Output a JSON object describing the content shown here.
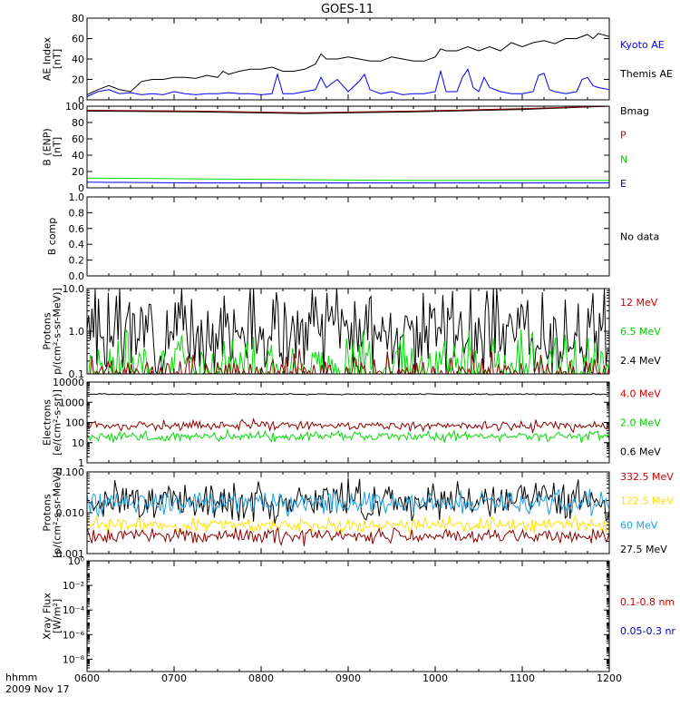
{
  "title": "GOES-11",
  "time_axis": {
    "tick_labels": [
      "0600",
      "0700",
      "0800",
      "0900",
      "1000",
      "1100",
      "1200"
    ],
    "unit_label": "hhmm",
    "date_label": "2009 Nov 17"
  },
  "chart_data": [
    {
      "id": "ae",
      "type": "line",
      "ylabel": [
        "AE Index",
        "[nT]"
      ],
      "yscale": "linear",
      "ylim": [
        0,
        80
      ],
      "yticks": [
        "0",
        "20",
        "40",
        "60",
        "80"
      ],
      "series": [
        {
          "name": "Kyoto AE",
          "color": "#0000ff",
          "points": [
            [
              0,
              3
            ],
            [
              10,
              8
            ],
            [
              20,
              10
            ],
            [
              30,
              6
            ],
            [
              40,
              7
            ],
            [
              50,
              5
            ],
            [
              60,
              6
            ],
            [
              70,
              5
            ],
            [
              80,
              8
            ],
            [
              90,
              6
            ],
            [
              100,
              5
            ],
            [
              110,
              6
            ],
            [
              120,
              6
            ],
            [
              130,
              7
            ],
            [
              140,
              6
            ],
            [
              150,
              6
            ],
            [
              160,
              5
            ],
            [
              170,
              6
            ],
            [
              175,
              25
            ],
            [
              180,
              6
            ],
            [
              190,
              6
            ],
            [
              200,
              8
            ],
            [
              210,
              10
            ],
            [
              215,
              22
            ],
            [
              220,
              12
            ],
            [
              230,
              20
            ],
            [
              240,
              8
            ],
            [
              250,
              18
            ],
            [
              255,
              25
            ],
            [
              260,
              10
            ],
            [
              270,
              6
            ],
            [
              280,
              8
            ],
            [
              290,
              5
            ],
            [
              300,
              6
            ],
            [
              310,
              6
            ],
            [
              320,
              8
            ],
            [
              325,
              28
            ],
            [
              330,
              8
            ],
            [
              340,
              8
            ],
            [
              345,
              22
            ],
            [
              350,
              30
            ],
            [
              355,
              12
            ],
            [
              360,
              8
            ],
            [
              365,
              22
            ],
            [
              370,
              12
            ],
            [
              380,
              8
            ],
            [
              390,
              6
            ],
            [
              400,
              6
            ],
            [
              410,
              8
            ],
            [
              415,
              24
            ],
            [
              420,
              26
            ],
            [
              425,
              10
            ],
            [
              430,
              8
            ],
            [
              440,
              6
            ],
            [
              450,
              8
            ],
            [
              455,
              20
            ],
            [
              460,
              22
            ],
            [
              465,
              14
            ],
            [
              470,
              12
            ],
            [
              480,
              10
            ]
          ]
        },
        {
          "name": "Themis AE",
          "color": "#000000",
          "points": [
            [
              0,
              5
            ],
            [
              10,
              10
            ],
            [
              20,
              14
            ],
            [
              30,
              10
            ],
            [
              40,
              8
            ],
            [
              50,
              18
            ],
            [
              60,
              20
            ],
            [
              70,
              20
            ],
            [
              80,
              22
            ],
            [
              90,
              22
            ],
            [
              100,
              21
            ],
            [
              110,
              24
            ],
            [
              120,
              22
            ],
            [
              125,
              28
            ],
            [
              130,
              25
            ],
            [
              140,
              28
            ],
            [
              150,
              30
            ],
            [
              160,
              30
            ],
            [
              170,
              32
            ],
            [
              180,
              28
            ],
            [
              190,
              28
            ],
            [
              200,
              30
            ],
            [
              210,
              35
            ],
            [
              215,
              45
            ],
            [
              220,
              40
            ],
            [
              230,
              40
            ],
            [
              240,
              42
            ],
            [
              250,
              40
            ],
            [
              260,
              38
            ],
            [
              270,
              38
            ],
            [
              280,
              42
            ],
            [
              290,
              40
            ],
            [
              300,
              38
            ],
            [
              310,
              38
            ],
            [
              320,
              42
            ],
            [
              325,
              50
            ],
            [
              330,
              48
            ],
            [
              340,
              48
            ],
            [
              350,
              52
            ],
            [
              360,
              48
            ],
            [
              370,
              52
            ],
            [
              380,
              48
            ],
            [
              390,
              56
            ],
            [
              400,
              52
            ],
            [
              410,
              56
            ],
            [
              420,
              58
            ],
            [
              430,
              55
            ],
            [
              440,
              60
            ],
            [
              450,
              60
            ],
            [
              460,
              64
            ],
            [
              465,
              60
            ],
            [
              470,
              65
            ],
            [
              480,
              62
            ]
          ]
        }
      ],
      "legend": [
        {
          "label": "Kyoto AE",
          "color": "#0000ff"
        },
        {
          "label": "Themis AE",
          "color": "#000000"
        }
      ]
    },
    {
      "id": "bfield",
      "type": "line",
      "ylabel": [
        "B (ENP)",
        "[nT]"
      ],
      "yscale": "linear",
      "ylim": [
        0,
        100
      ],
      "yticks": [
        "0",
        "20",
        "40",
        "60",
        "80",
        "100"
      ],
      "series": [
        {
          "name": "Bmag",
          "color": "#000000",
          "points": [
            [
              0,
              94
            ],
            [
              100,
              93
            ],
            [
              200,
              91
            ],
            [
              300,
              93
            ],
            [
              400,
              96
            ],
            [
              480,
              100
            ]
          ]
        },
        {
          "name": "P",
          "color": "#8b0000",
          "points": [
            [
              0,
              95
            ],
            [
              100,
              94
            ],
            [
              200,
              92
            ],
            [
              300,
              94
            ],
            [
              400,
              97
            ],
            [
              480,
              100
            ]
          ]
        },
        {
          "name": "N",
          "color": "#00dd00",
          "points": [
            [
              0,
              12
            ],
            [
              100,
              11
            ],
            [
              200,
              10
            ],
            [
              300,
              9
            ],
            [
              400,
              9
            ],
            [
              480,
              9
            ]
          ]
        },
        {
          "name": "E",
          "color": "#0000ff",
          "points": [
            [
              0,
              7
            ],
            [
              100,
              6
            ],
            [
              200,
              6
            ],
            [
              300,
              6
            ],
            [
              400,
              6
            ],
            [
              480,
              6
            ]
          ]
        }
      ],
      "legend": [
        {
          "label": "Bmag",
          "color": "#000000"
        },
        {
          "label": "P",
          "color": "#cc0000"
        },
        {
          "label": "N",
          "color": "#00cc00"
        },
        {
          "label": "E",
          "color": "#0000cc"
        }
      ]
    },
    {
      "id": "bcomp",
      "type": "line",
      "ylabel": [
        "B comp"
      ],
      "yscale": "linear",
      "ylim": [
        0,
        1
      ],
      "yticks": [
        "0.0",
        "0.2",
        "0.4",
        "0.6",
        "0.8",
        "1.0"
      ],
      "series": [],
      "legend": [
        {
          "label": "No data",
          "color": "#000000"
        }
      ]
    },
    {
      "id": "protons_low",
      "type": "line",
      "ylabel": [
        "Protons",
        "p/(cm²-s-sr-MeV)]"
      ],
      "yscale": "log",
      "ylim": [
        0.1,
        10
      ],
      "yticks": [
        "0.1",
        "1.0",
        "10.0"
      ],
      "series": [
        {
          "name": "2.4 MeV",
          "color": "#000000",
          "noise": {
            "center": 1.0,
            "spread": 1.0,
            "seed": 3
          }
        },
        {
          "name": "6.5 MeV",
          "color": "#00dd00",
          "noise": {
            "center": 0.14,
            "spread": 0.8,
            "seed": 7
          }
        },
        {
          "name": "12 MeV",
          "color": "#8b0000",
          "noise": {
            "center": 0.09,
            "spread": 0.5,
            "seed": 11
          }
        }
      ],
      "legend": [
        {
          "label": "12 MeV",
          "color": "#cc0000"
        },
        {
          "label": "6.5 MeV",
          "color": "#00cc00"
        },
        {
          "label": "2.4 MeV",
          "color": "#000000"
        }
      ]
    },
    {
      "id": "electrons",
      "type": "line",
      "ylabel": [
        "Electrons",
        "[e/(cm²-s-sr)]"
      ],
      "yscale": "log",
      "ylim": [
        1,
        10000
      ],
      "yticks": [
        "1",
        "10",
        "100",
        "1000",
        "10000"
      ],
      "series": [
        {
          "name": "0.6 MeV",
          "color": "#000000",
          "noise": {
            "center": 2500,
            "spread": 0.03,
            "seed": 5
          }
        },
        {
          "name": "4.0 MeV",
          "color": "#8b0000",
          "noise": {
            "center": 70,
            "spread": 0.25,
            "seed": 9
          }
        },
        {
          "name": "2.0 MeV",
          "color": "#00dd00",
          "noise": {
            "center": 20,
            "spread": 0.25,
            "seed": 13
          }
        }
      ],
      "legend": [
        {
          "label": "4.0 MeV",
          "color": "#cc0000"
        },
        {
          "label": "2.0 MeV",
          "color": "#00cc00"
        },
        {
          "label": "0.6 MeV",
          "color": "#000000"
        }
      ]
    },
    {
      "id": "protons_high",
      "type": "line",
      "ylabel": [
        "Protons",
        "[p/(cm²-s-sr-MeV)]"
      ],
      "yscale": "log",
      "ylim": [
        0.001,
        0.1
      ],
      "yticks": [
        "0.001",
        "0.010",
        "0.100"
      ],
      "series": [
        {
          "name": "27.5 MeV",
          "color": "#000000",
          "noise": {
            "center": 0.02,
            "spread": 0.45,
            "seed": 17
          }
        },
        {
          "name": "60 MeV",
          "color": "#1e9fe0",
          "noise": {
            "center": 0.018,
            "spread": 0.3,
            "seed": 19
          }
        },
        {
          "name": "122.5 MeV",
          "color": "#ffe000",
          "noise": {
            "center": 0.005,
            "spread": 0.18,
            "seed": 23
          }
        },
        {
          "name": "332.5 MeV",
          "color": "#8b0000",
          "noise": {
            "center": 0.0027,
            "spread": 0.18,
            "seed": 29
          }
        }
      ],
      "legend": [
        {
          "label": "332.5 MeV",
          "color": "#cc0000"
        },
        {
          "label": "122.5 MeV",
          "color": "#ffdd00"
        },
        {
          "label": "60 MeV",
          "color": "#1e9fe0"
        },
        {
          "label": "27.5 MeV",
          "color": "#000000"
        }
      ]
    },
    {
      "id": "xray",
      "type": "line",
      "ylabel": [
        "Xray Flux",
        "[W/m²]"
      ],
      "yscale": "log",
      "ylim": [
        1e-09,
        1
      ],
      "yticks": [
        "10⁻⁸",
        "10⁻⁶",
        "10⁻⁴",
        "10⁻²",
        "10⁰"
      ],
      "ytick_values": [
        1e-08,
        1e-06,
        0.0001,
        0.01,
        1
      ],
      "series": [],
      "legend": [
        {
          "label": "0.1-0.8 nm",
          "color": "#cc0000"
        },
        {
          "label": "0.05-0.3 nr",
          "color": "#0000cc"
        }
      ]
    }
  ]
}
